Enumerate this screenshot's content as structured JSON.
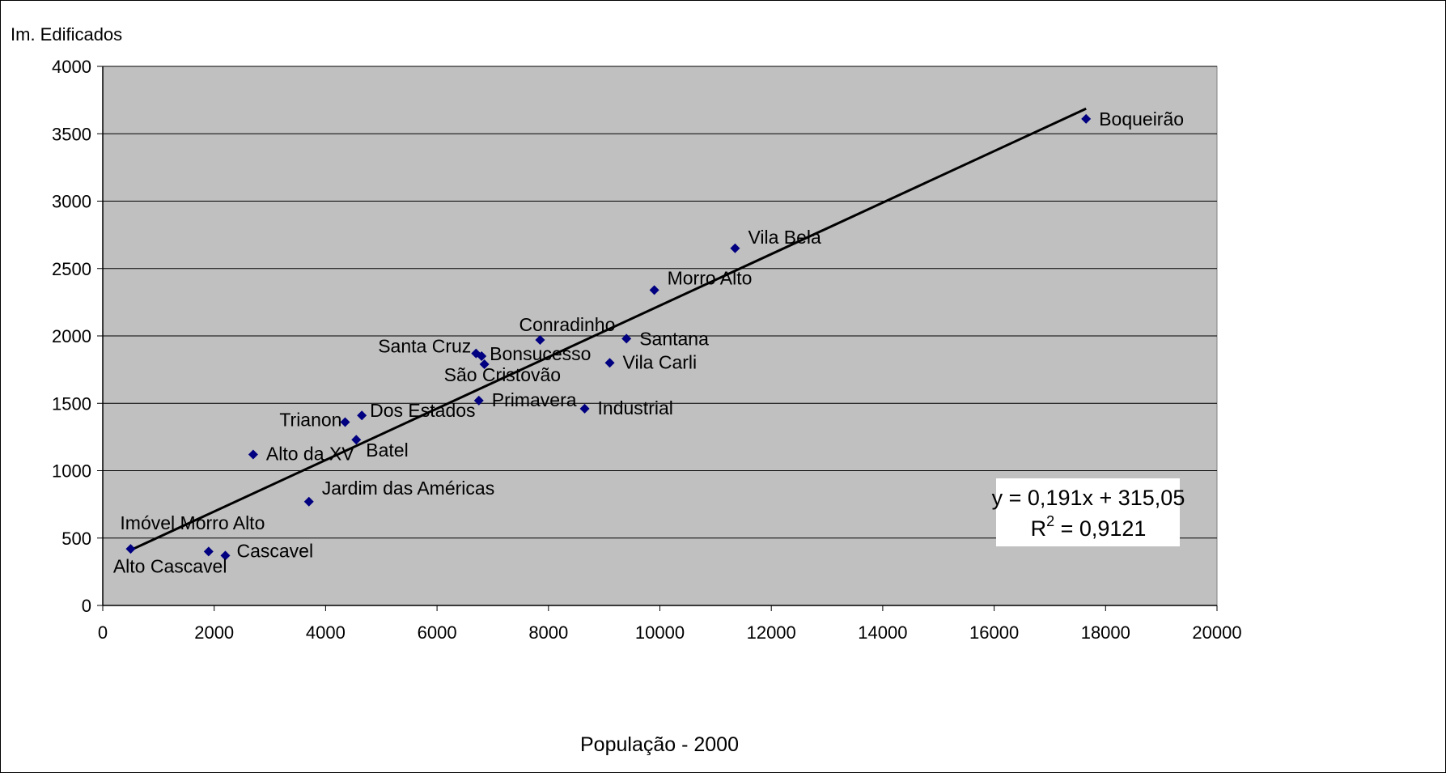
{
  "chart_data": {
    "type": "scatter",
    "title": "",
    "xlabel": "População - 2000",
    "ylabel": "Im. Edificados",
    "xlim": [
      0,
      20000
    ],
    "ylim": [
      0,
      4000
    ],
    "xticks": [
      "0",
      "2000",
      "4000",
      "6000",
      "8000",
      "10000",
      "12000",
      "14000",
      "16000",
      "18000",
      "20000"
    ],
    "yticks": [
      "0",
      "500",
      "1000",
      "1500",
      "2000",
      "2500",
      "3000",
      "3500",
      "4000"
    ],
    "grid": "horizontal",
    "plot_background": "#c0c0c0",
    "marker_color": "#000080",
    "marker": "diamond",
    "points": [
      {
        "label": "Boqueirão",
        "x": 17650,
        "y": 3610
      },
      {
        "label": "Vila Bela",
        "x": 11350,
        "y": 2650
      },
      {
        "label": "Morro Alto",
        "x": 9900,
        "y": 2340
      },
      {
        "label": "Conradinho",
        "x": 7850,
        "y": 1970
      },
      {
        "label": "Santana",
        "x": 9400,
        "y": 1980
      },
      {
        "label": "Santa Cruz",
        "x": 6700,
        "y": 1870
      },
      {
        "label": "Bonsucesso",
        "x": 6800,
        "y": 1850
      },
      {
        "label": "Vila Carli",
        "x": 9100,
        "y": 1800
      },
      {
        "label": "São Cristovão",
        "x": 6850,
        "y": 1790
      },
      {
        "label": "Primavera",
        "x": 6750,
        "y": 1520
      },
      {
        "label": "Industrial",
        "x": 8650,
        "y": 1460
      },
      {
        "label": "Dos Estados",
        "x": 4650,
        "y": 1410
      },
      {
        "label": "Trianon",
        "x": 4350,
        "y": 1360
      },
      {
        "label": "Batel",
        "x": 4550,
        "y": 1230
      },
      {
        "label": "Alto da XV",
        "x": 2700,
        "y": 1120
      },
      {
        "label": "Jardim das Américas",
        "x": 3700,
        "y": 770
      },
      {
        "label": "Imóvel Morro Alto",
        "x": 500,
        "y": 420
      },
      {
        "label": "Alto Cascavel",
        "x": 1900,
        "y": 400
      },
      {
        "label": "Cascavel",
        "x": 2200,
        "y": 370
      }
    ],
    "trendline": {
      "type": "linear",
      "slope": 0.191,
      "intercept": 315.05,
      "x_range": [
        500,
        17650
      ],
      "color": "#000000"
    },
    "equation_box": {
      "line1": "y = 0,191x + 315,05",
      "r2_prefix": "R",
      "r2_exp": "2",
      "r2_suffix": " = 0,9121",
      "position": "bottom-right"
    }
  }
}
